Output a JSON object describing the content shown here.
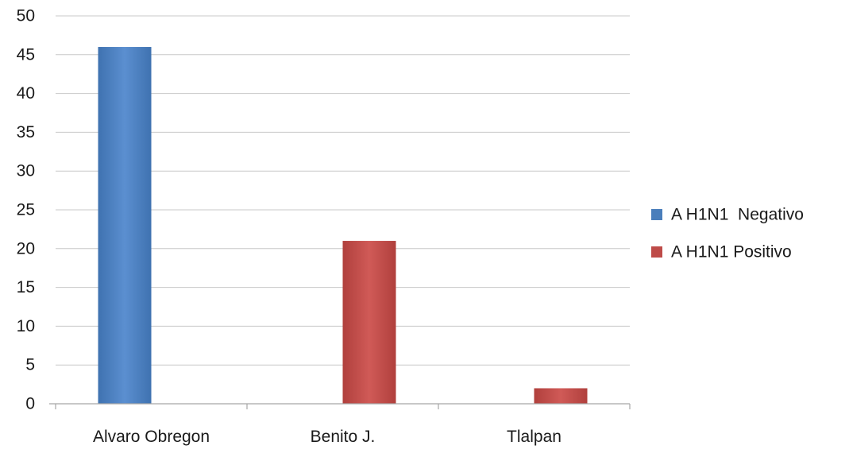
{
  "chart_data": {
    "type": "bar",
    "title": "",
    "xlabel": "",
    "ylabel": "",
    "ylim": [
      0,
      50
    ],
    "ytick_step": 5,
    "yticks": [
      "0",
      "5",
      "10",
      "15",
      "20",
      "25",
      "30",
      "35",
      "40",
      "45",
      "50"
    ],
    "grid": true,
    "legend_position": "right",
    "categories": [
      "Alvaro Obregon",
      "Benito J.",
      "Tlalpan"
    ],
    "series": [
      {
        "name": "A H1N1  Negativo",
        "color": "#4a7ebb",
        "values": [
          46,
          0,
          0
        ]
      },
      {
        "name": "A H1N1 Positivo",
        "color": "#be4b48",
        "values": [
          0,
          21,
          2
        ]
      }
    ]
  }
}
